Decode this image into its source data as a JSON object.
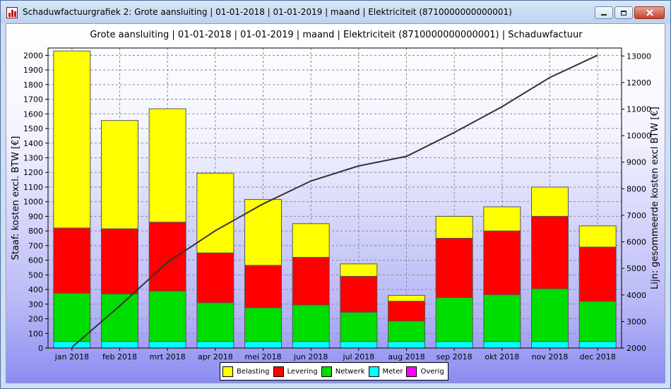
{
  "window": {
    "title": "Schaduwfactuurgrafiek 2: Grote aansluiting | 01-01-2018 | 01-01-2019 | maand | Elektriciteit (8710000000000001)",
    "icon": "chart-app-icon",
    "buttons": [
      "minimize",
      "maximize",
      "close"
    ]
  },
  "chart_data": {
    "type": "bar",
    "title": "Grote aansluiting | 01-01-2018 | 01-01-2019 | maand | Elektriciteit (8710000000000001) | Schaduwfactuur",
    "categories": [
      "jan 2018",
      "feb 2018",
      "mrt 2018",
      "apr 2018",
      "mei 2018",
      "jun 2018",
      "jul 2018",
      "aug 2018",
      "sep 2018",
      "okt 2018",
      "nov 2018",
      "dec 2018"
    ],
    "stacked": true,
    "series": [
      {
        "name": "Meter",
        "color": "#00ffff",
        "values": [
          45,
          45,
          45,
          45,
          45,
          45,
          45,
          45,
          45,
          45,
          45,
          45
        ]
      },
      {
        "name": "Netwerk",
        "color": "#00dd00",
        "values": [
          330,
          325,
          345,
          265,
          230,
          250,
          200,
          140,
          300,
          320,
          360,
          275
        ]
      },
      {
        "name": "Levering",
        "color": "#ff0000",
        "values": [
          445,
          445,
          470,
          340,
          290,
          325,
          245,
          135,
          405,
          435,
          495,
          370
        ]
      },
      {
        "name": "Belasting",
        "color": "#ffff00",
        "values": [
          1210,
          740,
          775,
          545,
          450,
          230,
          85,
          40,
          150,
          165,
          200,
          145
        ]
      },
      {
        "name": "Overig",
        "color": "#ff00ff",
        "values": [
          0,
          0,
          0,
          0,
          0,
          0,
          0,
          0,
          0,
          0,
          0,
          0
        ]
      }
    ],
    "legend_order": [
      "Belasting",
      "Levering",
      "Netwerk",
      "Meter",
      "Overig"
    ],
    "ylabel": "Staaf: kosten excl. BTW [€]",
    "ylim": [
      0,
      2050
    ],
    "yticks": [
      0,
      100,
      200,
      300,
      400,
      500,
      600,
      700,
      800,
      900,
      1000,
      1100,
      1200,
      1300,
      1400,
      1500,
      1600,
      1700,
      1800,
      1900,
      2000
    ],
    "line": {
      "name": "cumulative",
      "color": "#333333",
      "values": [
        2030,
        3590,
        5230,
        6420,
        7430,
        8290,
        8860,
        9220,
        10120,
        11090,
        12190,
        13030
      ]
    },
    "y2label": "Lijn: gesommeerde kosten excl BTW [€]",
    "y2lim": [
      2000,
      13300
    ],
    "y2ticks": [
      2000,
      3000,
      4000,
      5000,
      6000,
      7000,
      8000,
      9000,
      10000,
      11000,
      12000,
      13000
    ],
    "grid": true,
    "legend_position": "bottom-center"
  }
}
